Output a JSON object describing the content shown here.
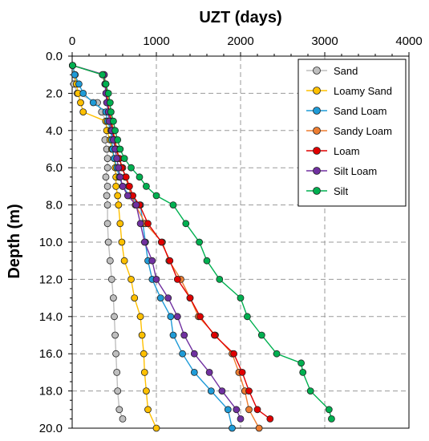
{
  "chart_data": {
    "type": "line",
    "title": "",
    "xlabel": "UZT (days)",
    "ylabel": "Depth (m)",
    "x_axis_position": "top",
    "y_inverted": true,
    "xlim": [
      0,
      4000
    ],
    "ylim": [
      0,
      20
    ],
    "xticks": [
      "0",
      "1000",
      "2000",
      "3000",
      "4000"
    ],
    "yticks": [
      "0.0",
      "2.0",
      "4.0",
      "6.0",
      "8.0",
      "10.0",
      "12.0",
      "14.0",
      "16.0",
      "18.0",
      "20.0"
    ],
    "grid": true,
    "legend": "top-right",
    "series": [
      {
        "name": "Sand",
        "color": "#bfbfbf",
        "points": [
          [
            5,
            0.5
          ],
          [
            35,
            1.0
          ],
          [
            20,
            1.5
          ],
          [
            60,
            2.0
          ],
          [
            300,
            2.5
          ],
          [
            350,
            3.0
          ],
          [
            400,
            3.5
          ],
          [
            420,
            4.0
          ],
          [
            390,
            4.5
          ],
          [
            410,
            5.0
          ],
          [
            420,
            5.5
          ],
          [
            420,
            6.0
          ],
          [
            400,
            6.5
          ],
          [
            420,
            7.0
          ],
          [
            410,
            7.5
          ],
          [
            420,
            8.0
          ],
          [
            420,
            9.0
          ],
          [
            430,
            10.0
          ],
          [
            450,
            11.0
          ],
          [
            470,
            12.0
          ],
          [
            490,
            13.0
          ],
          [
            500,
            14.0
          ],
          [
            510,
            15.0
          ],
          [
            520,
            16.0
          ],
          [
            530,
            17.0
          ],
          [
            540,
            18.0
          ],
          [
            560,
            19.0
          ],
          [
            600,
            19.5
          ]
        ]
      },
      {
        "name": "Loamy Sand",
        "color": "#ffc000",
        "points": [
          [
            5,
            0.5
          ],
          [
            30,
            1.0
          ],
          [
            50,
            1.5
          ],
          [
            70,
            2.0
          ],
          [
            100,
            2.5
          ],
          [
            130,
            3.0
          ],
          [
            400,
            3.5
          ],
          [
            410,
            4.0
          ],
          [
            450,
            4.5
          ],
          [
            470,
            5.0
          ],
          [
            500,
            5.5
          ],
          [
            510,
            6.0
          ],
          [
            520,
            6.5
          ],
          [
            520,
            7.0
          ],
          [
            540,
            7.5
          ],
          [
            550,
            8.0
          ],
          [
            570,
            9.0
          ],
          [
            590,
            10.0
          ],
          [
            620,
            11.0
          ],
          [
            700,
            12.0
          ],
          [
            740,
            13.0
          ],
          [
            810,
            14.0
          ],
          [
            830,
            15.0
          ],
          [
            850,
            16.0
          ],
          [
            860,
            17.0
          ],
          [
            880,
            18.0
          ],
          [
            900,
            19.0
          ],
          [
            1000,
            20.0
          ]
        ]
      },
      {
        "name": "Sand Loam",
        "color": "#1f9bd7",
        "points": [
          [
            5,
            0.5
          ],
          [
            30,
            1.0
          ],
          [
            80,
            1.5
          ],
          [
            130,
            2.0
          ],
          [
            250,
            2.5
          ],
          [
            400,
            3.0
          ],
          [
            420,
            3.5
          ],
          [
            460,
            4.0
          ],
          [
            470,
            4.5
          ],
          [
            480,
            5.0
          ],
          [
            500,
            5.5
          ],
          [
            530,
            6.0
          ],
          [
            560,
            6.5
          ],
          [
            600,
            7.0
          ],
          [
            680,
            7.5
          ],
          [
            810,
            8.0
          ],
          [
            840,
            9.0
          ],
          [
            870,
            10.0
          ],
          [
            900,
            11.0
          ],
          [
            950,
            12.0
          ],
          [
            1050,
            13.0
          ],
          [
            1170,
            14.0
          ],
          [
            1200,
            15.0
          ],
          [
            1310,
            16.0
          ],
          [
            1450,
            17.0
          ],
          [
            1650,
            18.0
          ],
          [
            1850,
            19.0
          ],
          [
            1900,
            20.0
          ]
        ]
      },
      {
        "name": "Sandy Loam",
        "color": "#ed7d31",
        "points": [
          [
            5,
            0.5
          ],
          [
            380,
            1.0
          ],
          [
            400,
            1.5
          ],
          [
            420,
            2.0
          ],
          [
            440,
            2.5
          ],
          [
            460,
            3.0
          ],
          [
            470,
            3.5
          ],
          [
            490,
            4.0
          ],
          [
            510,
            4.5
          ],
          [
            530,
            5.0
          ],
          [
            560,
            5.5
          ],
          [
            600,
            6.0
          ],
          [
            630,
            6.5
          ],
          [
            670,
            7.0
          ],
          [
            700,
            7.5
          ],
          [
            750,
            8.0
          ],
          [
            870,
            9.0
          ],
          [
            1070,
            10.0
          ],
          [
            1150,
            11.0
          ],
          [
            1290,
            12.0
          ],
          [
            1400,
            13.0
          ],
          [
            1500,
            14.0
          ],
          [
            1700,
            15.0
          ],
          [
            1900,
            16.0
          ],
          [
            1980,
            17.0
          ],
          [
            2050,
            18.0
          ],
          [
            2100,
            19.0
          ],
          [
            2220,
            20.0
          ]
        ]
      },
      {
        "name": "Loam",
        "color": "#e00000",
        "points": [
          [
            5,
            0.5
          ],
          [
            360,
            1.0
          ],
          [
            390,
            1.5
          ],
          [
            410,
            2.0
          ],
          [
            420,
            2.5
          ],
          [
            440,
            3.0
          ],
          [
            460,
            3.5
          ],
          [
            480,
            4.0
          ],
          [
            500,
            4.5
          ],
          [
            520,
            5.0
          ],
          [
            560,
            5.5
          ],
          [
            590,
            6.0
          ],
          [
            640,
            6.5
          ],
          [
            680,
            7.0
          ],
          [
            720,
            7.5
          ],
          [
            800,
            8.0
          ],
          [
            900,
            9.0
          ],
          [
            1060,
            10.0
          ],
          [
            1160,
            11.0
          ],
          [
            1250,
            12.0
          ],
          [
            1400,
            13.0
          ],
          [
            1520,
            14.0
          ],
          [
            1690,
            15.0
          ],
          [
            1920,
            16.0
          ],
          [
            2020,
            17.0
          ],
          [
            2100,
            18.0
          ],
          [
            2200,
            19.0
          ],
          [
            2350,
            19.5
          ]
        ]
      },
      {
        "name": "Silt Loam",
        "color": "#7030a0",
        "points": [
          [
            5,
            0.5
          ],
          [
            380,
            1.0
          ],
          [
            390,
            1.5
          ],
          [
            400,
            2.0
          ],
          [
            410,
            2.5
          ],
          [
            430,
            3.0
          ],
          [
            440,
            3.5
          ],
          [
            470,
            4.0
          ],
          [
            490,
            4.5
          ],
          [
            510,
            5.0
          ],
          [
            530,
            5.5
          ],
          [
            550,
            6.0
          ],
          [
            570,
            6.5
          ],
          [
            600,
            7.0
          ],
          [
            660,
            7.5
          ],
          [
            760,
            8.0
          ],
          [
            810,
            9.0
          ],
          [
            860,
            10.0
          ],
          [
            950,
            11.0
          ],
          [
            1000,
            12.0
          ],
          [
            1140,
            13.0
          ],
          [
            1250,
            14.0
          ],
          [
            1330,
            15.0
          ],
          [
            1450,
            16.0
          ],
          [
            1630,
            17.0
          ],
          [
            1780,
            18.0
          ],
          [
            1950,
            19.0
          ],
          [
            2000,
            19.5
          ]
        ]
      },
      {
        "name": "Silt",
        "color": "#00b050",
        "points": [
          [
            5,
            0.5
          ],
          [
            360,
            1.0
          ],
          [
            400,
            1.5
          ],
          [
            430,
            2.0
          ],
          [
            450,
            2.5
          ],
          [
            460,
            3.0
          ],
          [
            490,
            3.5
          ],
          [
            510,
            4.0
          ],
          [
            540,
            4.5
          ],
          [
            570,
            5.0
          ],
          [
            620,
            5.5
          ],
          [
            700,
            6.0
          ],
          [
            800,
            6.5
          ],
          [
            880,
            7.0
          ],
          [
            1000,
            7.5
          ],
          [
            1200,
            8.0
          ],
          [
            1350,
            9.0
          ],
          [
            1510,
            10.0
          ],
          [
            1600,
            11.0
          ],
          [
            1750,
            12.0
          ],
          [
            2000,
            13.0
          ],
          [
            2080,
            14.0
          ],
          [
            2250,
            15.0
          ],
          [
            2430,
            16.0
          ],
          [
            2720,
            16.5
          ],
          [
            2740,
            17.0
          ],
          [
            2830,
            18.0
          ],
          [
            3050,
            19.0
          ],
          [
            3080,
            19.5
          ]
        ]
      }
    ]
  }
}
